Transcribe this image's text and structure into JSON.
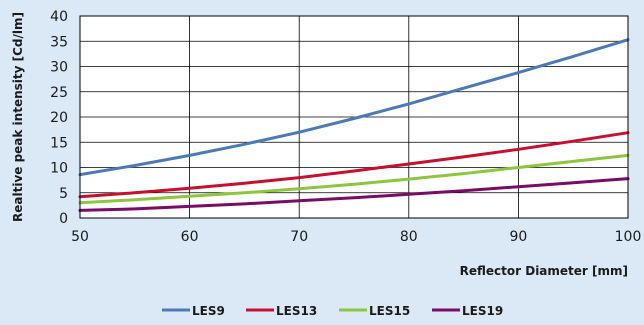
{
  "chart_data": {
    "type": "line",
    "title": "",
    "xlabel": "Reflector Diameter [mm]",
    "ylabel": "Realtive peak intensity [Cd/lm]",
    "xlim": [
      50,
      100
    ],
    "ylim": [
      0,
      40
    ],
    "xticks": [
      50,
      60,
      70,
      80,
      90,
      100
    ],
    "yticks": [
      0,
      5,
      10,
      15,
      20,
      25,
      30,
      35,
      40
    ],
    "grid": true,
    "legend_position": "bottom",
    "x": [
      50,
      55,
      60,
      65,
      70,
      75,
      80,
      85,
      90,
      95,
      100
    ],
    "series": [
      {
        "name": "LES9",
        "color": "#4a7ab8",
        "values": [
          8.6,
          10.4,
          12.4,
          14.6,
          17.0,
          19.7,
          22.6,
          25.7,
          28.8,
          32.0,
          35.3
        ]
      },
      {
        "name": "LES13",
        "color": "#c8102e",
        "values": [
          4.2,
          5.0,
          5.9,
          6.9,
          8.0,
          9.3,
          10.7,
          12.1,
          13.6,
          15.2,
          16.9
        ]
      },
      {
        "name": "LES15",
        "color": "#8dc63f",
        "values": [
          3.0,
          3.6,
          4.3,
          5.0,
          5.8,
          6.7,
          7.7,
          8.8,
          10.0,
          11.2,
          12.4
        ]
      },
      {
        "name": "LES19",
        "color": "#7b0c66",
        "values": [
          1.5,
          1.8,
          2.3,
          2.8,
          3.4,
          4.0,
          4.7,
          5.4,
          6.2,
          7.0,
          7.8
        ]
      }
    ]
  }
}
